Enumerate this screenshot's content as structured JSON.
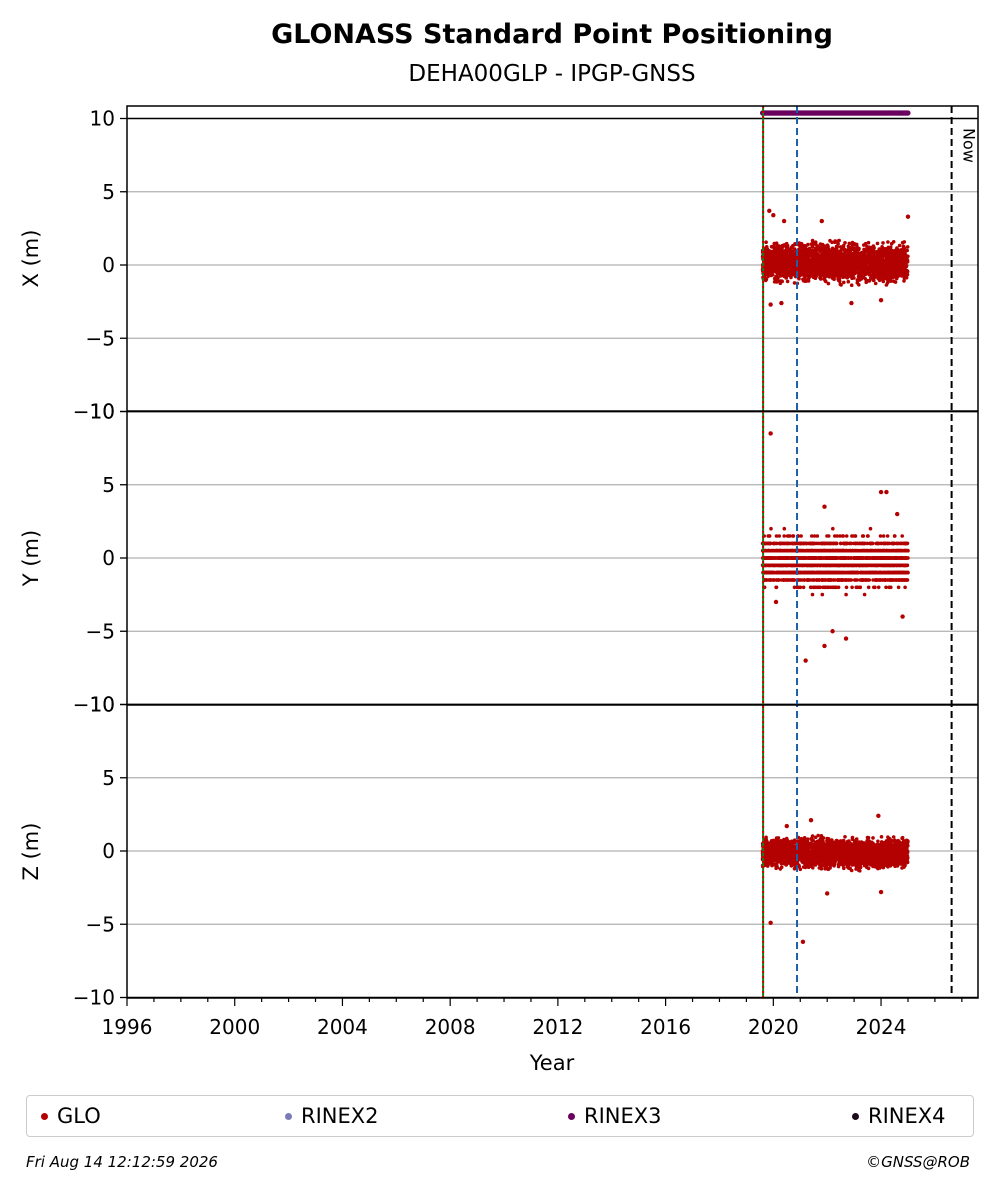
{
  "chart_data": {
    "type": "scatter",
    "title": "GLONASS Standard Point Positioning",
    "subtitle": "DEHA00GLP - IPGP-GNSS",
    "xlabel": "Year",
    "xlim": [
      1996,
      2027.6
    ],
    "xticks": [
      1996,
      2000,
      2004,
      2008,
      2012,
      2016,
      2020,
      2024
    ],
    "grid": "horizontal",
    "panels": [
      {
        "ylabel": "X (m)",
        "ylim": [
          -10,
          10
        ],
        "yticks": [
          -10,
          -5,
          0,
          5,
          10
        ],
        "core": {
          "x_start": 2019.6,
          "x_end": 2025.0,
          "y_min": -1.6,
          "y_max": 1.9
        },
        "outliers": [
          [
            2019.85,
            3.7
          ],
          [
            2020.0,
            3.4
          ],
          [
            2020.4,
            3.0
          ],
          [
            2021.8,
            3.0
          ],
          [
            2025.0,
            3.3
          ],
          [
            2020.3,
            -2.6
          ],
          [
            2022.9,
            -2.6
          ],
          [
            2024.0,
            -2.4
          ],
          [
            2019.9,
            -2.7
          ]
        ]
      },
      {
        "ylabel": "Y (m)",
        "ylim": [
          -10,
          10
        ],
        "yticks": [
          -10,
          -5,
          0,
          5,
          10
        ],
        "core": {
          "x_start": 2019.6,
          "x_end": 2025.0,
          "y_min": -2.5,
          "y_max": 2.0,
          "quantized": 0.5
        },
        "outliers": [
          [
            2019.9,
            8.5
          ],
          [
            2021.2,
            -7.0
          ],
          [
            2021.9,
            -6.0
          ],
          [
            2022.7,
            -5.5
          ],
          [
            2024.0,
            4.5
          ],
          [
            2024.2,
            4.5
          ],
          [
            2022.2,
            -5.0
          ],
          [
            2021.9,
            3.5
          ],
          [
            2024.6,
            3.0
          ],
          [
            2024.8,
            -4.0
          ],
          [
            2020.1,
            -3.0
          ]
        ]
      },
      {
        "ylabel": "Z (m)",
        "ylim": [
          -10,
          10
        ],
        "yticks": [
          -10,
          -5,
          0,
          5,
          10
        ],
        "core": {
          "x_start": 2019.6,
          "x_end": 2025.0,
          "y_min": -1.5,
          "y_max": 1.2
        },
        "outliers": [
          [
            2019.9,
            -4.9
          ],
          [
            2021.1,
            -6.2
          ],
          [
            2023.9,
            2.4
          ],
          [
            2021.4,
            2.1
          ],
          [
            2020.5,
            1.7
          ],
          [
            2022.0,
            -2.9
          ],
          [
            2024.0,
            -2.8
          ]
        ]
      }
    ],
    "rinex3_bar": {
      "x_start": 2019.6,
      "x_end": 2025.0,
      "y": 10.4,
      "color": "#6b005f"
    },
    "vlines": [
      {
        "x": 2019.62,
        "color": "#1a7a1a",
        "style": "solid"
      },
      {
        "x": 2019.62,
        "color": "#cc0000",
        "style": "dotted"
      },
      {
        "x": 2020.88,
        "color": "#1f5fa8",
        "style": "dashed"
      },
      {
        "x": 2026.62,
        "color": "#000000",
        "style": "dashed",
        "label": "Now"
      }
    ],
    "series": [
      {
        "name": "GLO",
        "color": "#b30000"
      },
      {
        "name": "RINEX2",
        "color": "#7b7bb8"
      },
      {
        "name": "RINEX3",
        "color": "#6b005f"
      },
      {
        "name": "RINEX4",
        "color": "#1a0a1a"
      }
    ],
    "legend_placement": "bottom"
  },
  "footer": {
    "timestamp": "Fri Aug 14 12:12:59 2026",
    "credit": "©GNSS@ROB"
  }
}
